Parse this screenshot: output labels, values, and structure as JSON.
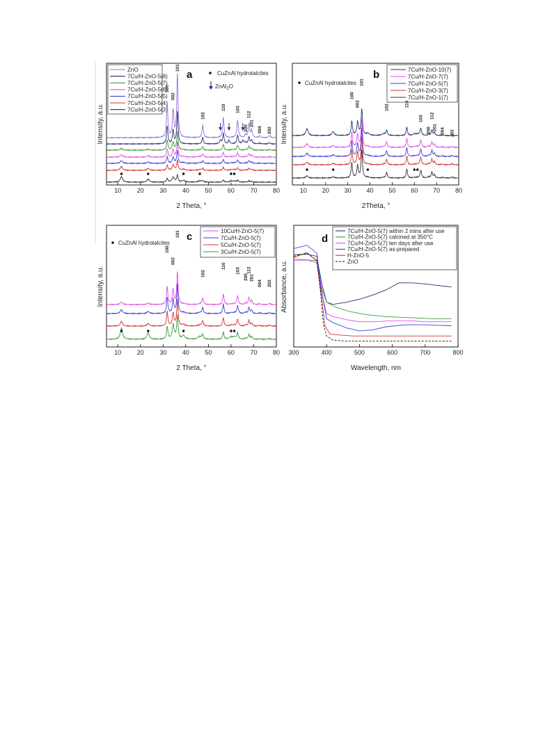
{
  "chart_data": [
    {
      "panel": "a",
      "type": "line",
      "xlabel": "2 Theta, °",
      "ylabel": "Intensity, a.u.",
      "xlim": [
        5,
        80
      ],
      "xticks": [
        10,
        20,
        30,
        40,
        50,
        60,
        70,
        80
      ],
      "legend": [
        "ZnO",
        "7Cu/H-ZnO-5(8)",
        "7Cu/H-ZnO-5(7)",
        "7Cu/H-ZnO-5(6)",
        "7Cu/H-ZnO-5(5)",
        "7Cu/H-ZnO-5(4)",
        "7Cu/H-ZnO-5(3)"
      ],
      "colors": [
        "#9a6be0",
        "#2b2e6e",
        "#3a9a3a",
        "#e24be6",
        "#3d3de0",
        "#d63030",
        "#333333"
      ],
      "annotations": [
        "CuZnAl hydrotalcites",
        "ZnAl",
        "2",
        "O"
      ],
      "peak_labels": [
        {
          "x": 31.8,
          "label": "100"
        },
        {
          "x": 34.4,
          "label": "002"
        },
        {
          "x": 36.3,
          "label": "101"
        },
        {
          "x": 47.5,
          "label": "102"
        },
        {
          "x": 56.6,
          "label": "110"
        },
        {
          "x": 62.9,
          "label": "103"
        },
        {
          "x": 66.4,
          "label": "200"
        },
        {
          "x": 67.9,
          "label": "112"
        },
        {
          "x": 69.1,
          "label": "201"
        },
        {
          "x": 72.6,
          "label": "004"
        },
        {
          "x": 77.0,
          "label": "202"
        }
      ],
      "hydrotalcite_markers": [
        11.6,
        23.4,
        39.0,
        46.2,
        60.0,
        61.4
      ],
      "arrow_markers": [
        55.3,
        59.1,
        65.2
      ]
    },
    {
      "panel": "b",
      "type": "line",
      "xlabel": "2Theta, °",
      "ylabel": "Intensity, a.u.",
      "xlim": [
        5,
        80
      ],
      "xticks": [
        10,
        20,
        30,
        40,
        50,
        60,
        70,
        80
      ],
      "legend": [
        "7Cu/H-ZnO-10(7)",
        "7Cu/H-ZnO-7(7)",
        "7Cu/H-ZnO-5(7)",
        "7Cu/H-ZnO-3(7)",
        "7Cu/H-ZnO-1(7)"
      ],
      "colors": [
        "#2b2e6e",
        "#e24be6",
        "#3d3de0",
        "#d63030",
        "#333333"
      ],
      "annotations": [
        "CuZnAl hydrotalcites"
      ],
      "peak_labels": [
        {
          "x": 31.8,
          "label": "100"
        },
        {
          "x": 34.4,
          "label": "002"
        },
        {
          "x": 36.3,
          "label": "101"
        },
        {
          "x": 47.5,
          "label": "102"
        },
        {
          "x": 56.6,
          "label": "110"
        },
        {
          "x": 62.9,
          "label": "103"
        },
        {
          "x": 66.4,
          "label": "200"
        },
        {
          "x": 67.9,
          "label": "112"
        },
        {
          "x": 69.1,
          "label": "201"
        },
        {
          "x": 72.6,
          "label": "004"
        },
        {
          "x": 77.0,
          "label": "202"
        }
      ],
      "hydrotalcite_markers": [
        11.6,
        23.4,
        39.0,
        60.0,
        61.4
      ]
    },
    {
      "panel": "c",
      "type": "line",
      "xlabel": "2 Theta, °",
      "ylabel": "Intensity, a.u.",
      "xlim": [
        5,
        80
      ],
      "xticks": [
        10,
        20,
        30,
        40,
        50,
        60,
        70,
        80
      ],
      "legend": [
        "10Cu/H-ZnO-5(7)",
        "7Cu/H-ZnO-5(7)",
        "5Cu/H-ZnO-5(7)",
        "3Cu/H-ZnO-5(7)"
      ],
      "colors": [
        "#e24be6",
        "#3d3de0",
        "#d63030",
        "#3a9a3a"
      ],
      "annotations": [
        "CuZnAl hydrotalcites"
      ],
      "peak_labels": [
        {
          "x": 31.8,
          "label": "100"
        },
        {
          "x": 34.4,
          "label": "002"
        },
        {
          "x": 36.3,
          "label": "101"
        },
        {
          "x": 47.5,
          "label": "102"
        },
        {
          "x": 56.6,
          "label": "110"
        },
        {
          "x": 62.9,
          "label": "103"
        },
        {
          "x": 66.4,
          "label": "200"
        },
        {
          "x": 67.9,
          "label": "112"
        },
        {
          "x": 69.1,
          "label": "201"
        },
        {
          "x": 72.6,
          "label": "004"
        },
        {
          "x": 77.0,
          "label": "202"
        }
      ],
      "hydrotalcite_markers": [
        11.6,
        23.4,
        39.0,
        60.0,
        61.4
      ]
    },
    {
      "panel": "d",
      "type": "line",
      "xlabel": "Wavelength, nm",
      "ylabel": "Absorbance, a.u.",
      "xlim": [
        300,
        800
      ],
      "xticks": [
        300,
        400,
        500,
        600,
        700,
        800
      ],
      "legend": [
        "7Cu/H-ZnO-5(7) within 2 mins after use",
        "7Cu/H-ZnO-5(7) calcined at 350°C",
        "7Cu/H-ZnO-5(7) ten days after use",
        "7Cu/H-ZnO-5(7) as-prepared",
        "H-ZnO-5",
        "ZnO"
      ],
      "colors": [
        "#2b2e6e",
        "#3a9a3a",
        "#e24be6",
        "#3d3de0",
        "#d63030",
        "#111111"
      ],
      "series": [
        {
          "name": "7Cu/H-ZnO-5(7) within 2 mins after use",
          "x": [
            300,
            340,
            370,
            385,
            400,
            420,
            460,
            500,
            540,
            580,
            620,
            660,
            700,
            750,
            780
          ],
          "y": [
            0.88,
            0.9,
            0.86,
            0.6,
            0.41,
            0.39,
            0.41,
            0.44,
            0.48,
            0.53,
            0.6,
            0.6,
            0.59,
            0.57,
            0.56
          ]
        },
        {
          "name": "7Cu/H-ZnO-5(7) calcined at 350°C",
          "x": [
            300,
            340,
            370,
            385,
            400,
            430,
            470,
            520,
            580,
            650,
            720,
            780
          ],
          "y": [
            0.82,
            0.84,
            0.8,
            0.55,
            0.41,
            0.36,
            0.32,
            0.29,
            0.27,
            0.26,
            0.25,
            0.25
          ]
        },
        {
          "name": "7Cu/H-ZnO-5(7) ten days after use",
          "x": [
            300,
            340,
            370,
            385,
            400,
            420,
            460,
            500,
            550,
            600,
            650,
            700,
            780
          ],
          "y": [
            0.8,
            0.82,
            0.78,
            0.5,
            0.3,
            0.27,
            0.24,
            0.22,
            0.22,
            0.23,
            0.23,
            0.22,
            0.22
          ]
        },
        {
          "name": "7Cu/H-ZnO-5(7) as-prepared",
          "x": [
            300,
            340,
            370,
            385,
            400,
            420,
            460,
            500,
            540,
            580,
            640,
            700,
            780
          ],
          "y": [
            0.93,
            0.95,
            0.89,
            0.52,
            0.25,
            0.21,
            0.16,
            0.13,
            0.14,
            0.17,
            0.19,
            0.19,
            0.18
          ]
        },
        {
          "name": "H-ZnO-5",
          "x": [
            300,
            340,
            370,
            385,
            395,
            410,
            440,
            480,
            550,
            650,
            780
          ],
          "y": [
            0.86,
            0.88,
            0.83,
            0.45,
            0.18,
            0.1,
            0.09,
            0.08,
            0.08,
            0.08,
            0.08
          ]
        },
        {
          "name": "ZnO",
          "x": [
            300,
            340,
            370,
            382,
            390,
            400,
            420,
            460,
            550,
            650,
            780
          ],
          "y": [
            0.88,
            0.89,
            0.84,
            0.5,
            0.2,
            0.08,
            0.04,
            0.03,
            0.03,
            0.03,
            0.03
          ]
        }
      ]
    }
  ]
}
